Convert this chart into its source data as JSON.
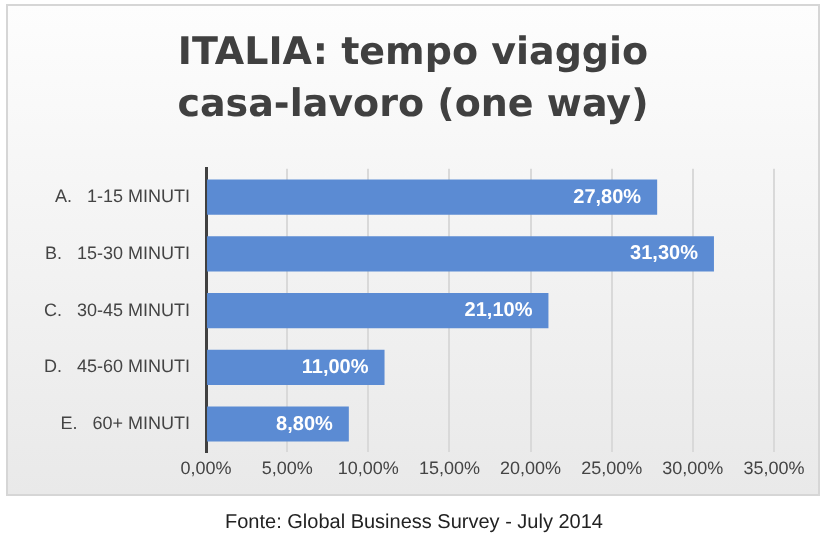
{
  "chart_data": {
    "type": "bar",
    "orientation": "horizontal",
    "title": "ITALIA: tempo viaggio casa-lavoro (one way)",
    "categories": [
      "A.   1-15 MINUTI",
      "B.   15-30 MINUTI",
      "C.   30-45 MINUTI",
      "D.   45-60 MINUTI",
      "E.   60+ MINUTI"
    ],
    "values": [
      27.8,
      31.3,
      21.1,
      11.0,
      8.8
    ],
    "value_labels": [
      "27,80%",
      "31,30%",
      "21,10%",
      "11,00%",
      "8,80%"
    ],
    "color": "#5b8bd3",
    "xlim": [
      0,
      35
    ],
    "xticks": [
      {
        "value": 0,
        "label": "0,00%"
      },
      {
        "value": 5,
        "label": "5,00%"
      },
      {
        "value": 10,
        "label": "10,00%"
      },
      {
        "value": 15,
        "label": "15,00%"
      },
      {
        "value": 20,
        "label": "20,00%"
      },
      {
        "value": 25,
        "label": "25,00%"
      },
      {
        "value": 30,
        "label": "30,00%"
      },
      {
        "value": 35,
        "label": "35,00%"
      }
    ],
    "grid": "x",
    "annotations": [
      "Fonte: Global Business Survey - July 2014"
    ]
  }
}
